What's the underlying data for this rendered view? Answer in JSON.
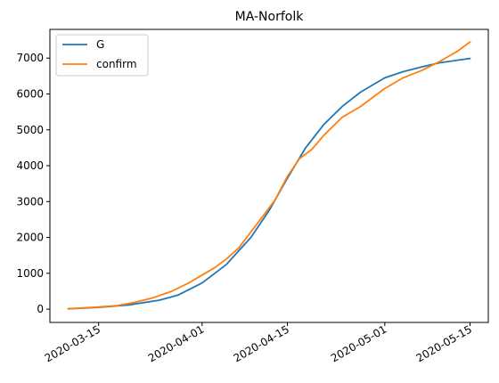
{
  "chart_data": {
    "type": "line",
    "title": "MA-Norfolk",
    "xlabel": "",
    "ylabel": "",
    "x_type": "date",
    "xlim": [
      "2020-03-07",
      "2020-05-18"
    ],
    "ylim": [
      -370,
      7800
    ],
    "x_ticks": [
      "2020-03-15",
      "2020-04-01",
      "2020-04-15",
      "2020-05-01",
      "2020-05-15"
    ],
    "y_ticks": [
      0,
      1000,
      2000,
      3000,
      4000,
      5000,
      6000,
      7000
    ],
    "grid": false,
    "legend": {
      "placement": "top-left",
      "entries": [
        "G",
        "confirm"
      ]
    },
    "series": [
      {
        "name": "G",
        "color": "#1f77b4",
        "points": [
          [
            "2020-03-10",
            10
          ],
          [
            "2020-03-15",
            50
          ],
          [
            "2020-03-20",
            120
          ],
          [
            "2020-03-25",
            250
          ],
          [
            "2020-03-28",
            390
          ],
          [
            "2020-04-01",
            730
          ],
          [
            "2020-04-05",
            1250
          ],
          [
            "2020-04-09",
            2000
          ],
          [
            "2020-04-12",
            2750
          ],
          [
            "2020-04-15",
            3650
          ],
          [
            "2020-04-18",
            4500
          ],
          [
            "2020-04-21",
            5150
          ],
          [
            "2020-04-24",
            5650
          ],
          [
            "2020-04-27",
            6050
          ],
          [
            "2020-05-01",
            6450
          ],
          [
            "2020-05-04",
            6620
          ],
          [
            "2020-05-07",
            6750
          ],
          [
            "2020-05-10",
            6870
          ],
          [
            "2020-05-15",
            6990
          ]
        ]
      },
      {
        "name": "confirm",
        "color": "#ff7f0e",
        "points": [
          [
            "2020-03-10",
            10
          ],
          [
            "2020-03-15",
            60
          ],
          [
            "2020-03-18",
            100
          ],
          [
            "2020-03-21",
            190
          ],
          [
            "2020-03-24",
            320
          ],
          [
            "2020-03-27",
            500
          ],
          [
            "2020-03-30",
            750
          ],
          [
            "2020-04-01",
            950
          ],
          [
            "2020-04-03",
            1150
          ],
          [
            "2020-04-05",
            1400
          ],
          [
            "2020-04-07",
            1700
          ],
          [
            "2020-04-09",
            2150
          ],
          [
            "2020-04-11",
            2600
          ],
          [
            "2020-04-13",
            3050
          ],
          [
            "2020-04-15",
            3700
          ],
          [
            "2020-04-17",
            4200
          ],
          [
            "2020-04-19",
            4450
          ],
          [
            "2020-04-21",
            4850
          ],
          [
            "2020-04-24",
            5350
          ],
          [
            "2020-04-27",
            5650
          ],
          [
            "2020-05-01",
            6150
          ],
          [
            "2020-05-04",
            6450
          ],
          [
            "2020-05-07",
            6650
          ],
          [
            "2020-05-10",
            6900
          ],
          [
            "2020-05-13",
            7200
          ],
          [
            "2020-05-15",
            7450
          ]
        ]
      }
    ]
  }
}
